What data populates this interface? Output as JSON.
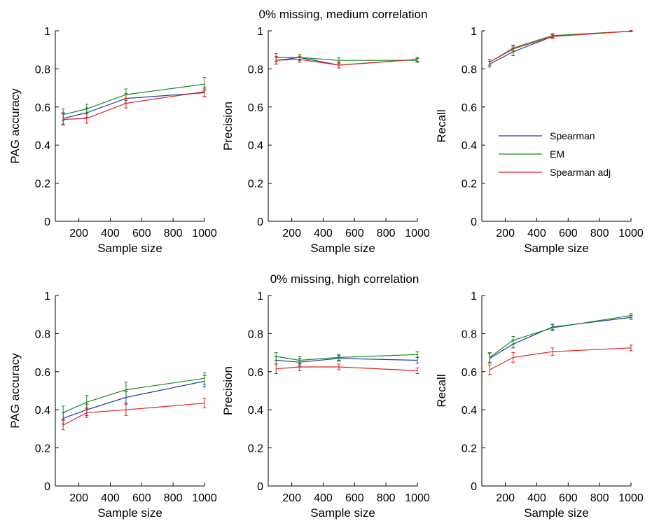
{
  "figure": {
    "row_titles": [
      "0% missing, medium correlation",
      "0% missing, high correlation"
    ]
  },
  "legend": {
    "entries": [
      {
        "label": "Spearman",
        "color": "#1f3f9f"
      },
      {
        "label": "EM",
        "color": "#1a8a1a"
      },
      {
        "label": "Spearman adj",
        "color": "#e02020"
      }
    ],
    "location": "center-right of top-right panel"
  },
  "chart_data": [
    {
      "type": "line",
      "row": 0,
      "col": 0,
      "xlabel": "Sample size",
      "ylabel": "PAG accuracy",
      "xlim": [
        50,
        1000
      ],
      "ylim": [
        0,
        1
      ],
      "xticks": [
        200,
        400,
        600,
        800,
        1000
      ],
      "xtick_labels": [
        "200",
        "400",
        "600",
        "800",
        "1000"
      ],
      "yticks": [
        0,
        0.2,
        0.4,
        0.6,
        0.8,
        1
      ],
      "ytick_labels": [
        "0",
        "0.2",
        "0.4",
        "0.6",
        "0.8",
        "1"
      ],
      "x": [
        100,
        250,
        500,
        1000
      ],
      "series": [
        {
          "name": "Spearman",
          "values": [
            0.54,
            0.57,
            0.645,
            0.675
          ],
          "err": [
            0.03,
            0.025,
            0.025,
            0.02
          ]
        },
        {
          "name": "EM",
          "values": [
            0.56,
            0.59,
            0.665,
            0.72
          ],
          "err": [
            0.03,
            0.025,
            0.03,
            0.035
          ]
        },
        {
          "name": "Spearman adj",
          "values": [
            0.535,
            0.54,
            0.62,
            0.68
          ],
          "err": [
            0.03,
            0.025,
            0.025,
            0.025
          ]
        }
      ]
    },
    {
      "type": "line",
      "row": 0,
      "col": 1,
      "xlabel": "Sample size",
      "ylabel": "Precision",
      "xlim": [
        50,
        1000
      ],
      "ylim": [
        0,
        1
      ],
      "xticks": [
        200,
        400,
        600,
        800,
        1000
      ],
      "xtick_labels": [
        "200",
        "400",
        "600",
        "800",
        "1000"
      ],
      "yticks": [
        0,
        0.2,
        0.4,
        0.6,
        0.8,
        1
      ],
      "ytick_labels": [
        "0",
        "0.2",
        "0.4",
        "0.6",
        "0.8",
        "1"
      ],
      "x": [
        100,
        250,
        500,
        1000
      ],
      "series": [
        {
          "name": "Spearman",
          "values": [
            0.845,
            0.86,
            0.82,
            0.85
          ],
          "err": [
            0.02,
            0.015,
            0.015,
            0.01
          ]
        },
        {
          "name": "EM",
          "values": [
            0.86,
            0.86,
            0.845,
            0.845
          ],
          "err": [
            0.02,
            0.015,
            0.015,
            0.01
          ]
        },
        {
          "name": "Spearman adj",
          "values": [
            0.845,
            0.85,
            0.82,
            0.85
          ],
          "err": [
            0.02,
            0.015,
            0.015,
            0.01
          ]
        }
      ]
    },
    {
      "type": "line",
      "row": 0,
      "col": 2,
      "xlabel": "Sample size",
      "ylabel": "Recall",
      "xlim": [
        50,
        1000
      ],
      "ylim": [
        0,
        1
      ],
      "xticks": [
        200,
        400,
        600,
        800,
        1000
      ],
      "xtick_labels": [
        "200",
        "400",
        "600",
        "800",
        "1000"
      ],
      "yticks": [
        0,
        0.2,
        0.4,
        0.6,
        0.8,
        1
      ],
      "ytick_labels": [
        "0",
        "0.2",
        "0.4",
        "0.6",
        "0.8",
        "1"
      ],
      "x": [
        100,
        250,
        500,
        1000
      ],
      "series": [
        {
          "name": "Spearman",
          "values": [
            0.825,
            0.89,
            0.97,
            0.998
          ],
          "err": [
            0.015,
            0.02,
            0.01,
            0.003
          ]
        },
        {
          "name": "EM",
          "values": [
            0.835,
            0.91,
            0.975,
            0.998
          ],
          "err": [
            0.015,
            0.015,
            0.01,
            0.003
          ]
        },
        {
          "name": "Spearman adj",
          "values": [
            0.835,
            0.905,
            0.97,
            0.998
          ],
          "err": [
            0.015,
            0.015,
            0.01,
            0.003
          ]
        }
      ]
    },
    {
      "type": "line",
      "row": 1,
      "col": 0,
      "xlabel": "Sample size",
      "ylabel": "PAG accuracy",
      "xlim": [
        50,
        1000
      ],
      "ylim": [
        0,
        1
      ],
      "xticks": [
        200,
        400,
        600,
        800,
        1000
      ],
      "xtick_labels": [
        "200",
        "400",
        "600",
        "800",
        "1000"
      ],
      "yticks": [
        0,
        0.2,
        0.4,
        0.6,
        0.8,
        1
      ],
      "ytick_labels": [
        "0",
        "0.2",
        "0.4",
        "0.6",
        "0.8",
        "1"
      ],
      "x": [
        100,
        250,
        500,
        1000
      ],
      "series": [
        {
          "name": "Spearman",
          "values": [
            0.355,
            0.4,
            0.465,
            0.55
          ],
          "err": [
            0.03,
            0.03,
            0.03,
            0.03
          ]
        },
        {
          "name": "EM",
          "values": [
            0.385,
            0.44,
            0.505,
            0.565
          ],
          "err": [
            0.035,
            0.035,
            0.04,
            0.03
          ]
        },
        {
          "name": "Spearman adj",
          "values": [
            0.32,
            0.385,
            0.4,
            0.435
          ],
          "err": [
            0.025,
            0.025,
            0.03,
            0.025
          ]
        }
      ]
    },
    {
      "type": "line",
      "row": 1,
      "col": 1,
      "xlabel": "Sample size",
      "ylabel": "Precision",
      "xlim": [
        50,
        1000
      ],
      "ylim": [
        0,
        1
      ],
      "xticks": [
        200,
        400,
        600,
        800,
        1000
      ],
      "xtick_labels": [
        "200",
        "400",
        "600",
        "800",
        "1000"
      ],
      "yticks": [
        0,
        0.2,
        0.4,
        0.6,
        0.8,
        1
      ],
      "ytick_labels": [
        "0",
        "0.2",
        "0.4",
        "0.6",
        "0.8",
        "1"
      ],
      "x": [
        100,
        250,
        500,
        1000
      ],
      "series": [
        {
          "name": "Spearman",
          "values": [
            0.66,
            0.65,
            0.67,
            0.66
          ],
          "err": [
            0.02,
            0.02,
            0.015,
            0.015
          ]
        },
        {
          "name": "EM",
          "values": [
            0.68,
            0.66,
            0.675,
            0.69
          ],
          "err": [
            0.02,
            0.02,
            0.015,
            0.015
          ]
        },
        {
          "name": "Spearman adj",
          "values": [
            0.615,
            0.625,
            0.625,
            0.605
          ],
          "err": [
            0.025,
            0.02,
            0.015,
            0.015
          ]
        }
      ]
    },
    {
      "type": "line",
      "row": 1,
      "col": 2,
      "xlabel": "Sample size",
      "ylabel": "Recall",
      "xlim": [
        50,
        1000
      ],
      "ylim": [
        0,
        1
      ],
      "xticks": [
        200,
        400,
        600,
        800,
        1000
      ],
      "xtick_labels": [
        "200",
        "400",
        "600",
        "800",
        "1000"
      ],
      "yticks": [
        0,
        0.2,
        0.4,
        0.6,
        0.8,
        1
      ],
      "ytick_labels": [
        "0",
        "0.2",
        "0.4",
        "0.6",
        "0.8",
        "1"
      ],
      "x": [
        100,
        250,
        500,
        1000
      ],
      "series": [
        {
          "name": "Spearman",
          "values": [
            0.67,
            0.745,
            0.835,
            0.885
          ],
          "err": [
            0.025,
            0.02,
            0.015,
            0.01
          ]
        },
        {
          "name": "EM",
          "values": [
            0.675,
            0.765,
            0.83,
            0.895
          ],
          "err": [
            0.025,
            0.02,
            0.015,
            0.01
          ]
        },
        {
          "name": "Spearman adj",
          "values": [
            0.61,
            0.675,
            0.705,
            0.725
          ],
          "err": [
            0.025,
            0.025,
            0.02,
            0.015
          ]
        }
      ]
    }
  ]
}
